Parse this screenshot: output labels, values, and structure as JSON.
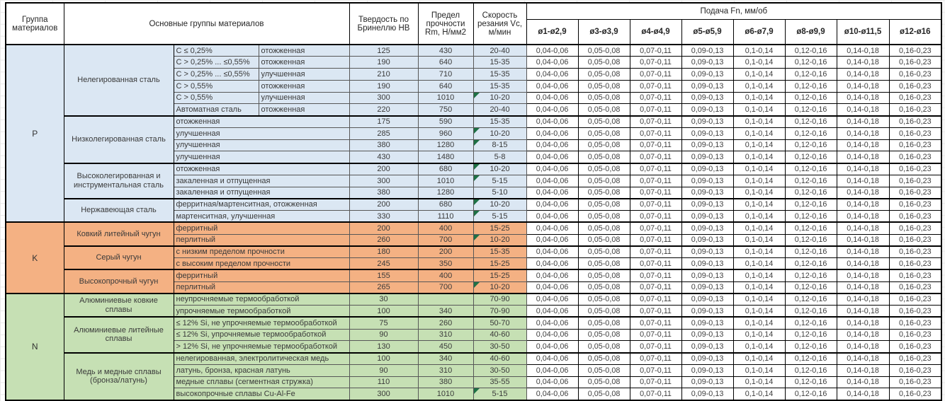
{
  "header": {
    "col_group": "Группа материалов",
    "col_materials": "Основные группы материалов",
    "col_hardness": "Твердость по Бринеллю HB",
    "col_strength": "Предел прочности Rm, Н/мм2",
    "col_speed": "Скорость резания Vc, м/мин",
    "col_feed": "Подача Fn, мм/об",
    "feed_columns": [
      "ø1-ø2,9",
      "ø3-ø3,9",
      "ø4-ø4,9",
      "ø5-ø5,9",
      "ø6-ø7,9",
      "ø8-ø9,9",
      "ø10-ø11,5",
      "ø12-ø16"
    ]
  },
  "feed_values": [
    "0,04-0,06",
    "0,05-0,08",
    "0,07-0,11",
    "0,09-0,13",
    "0,1-0,14",
    "0,12-0,16",
    "0,14-0,18",
    "0,16-0,23"
  ],
  "marker_color": "#1e7145",
  "groups": [
    {
      "letter": "P",
      "color": "#dbe7f3",
      "subgroups": [
        {
          "name": "Нелегированная сталь",
          "rows": [
            {
              "cells": [
                "C ≤ 0,25%",
                "отожженная"
              ],
              "hb": "125",
              "rm": "430",
              "vc": "20-40",
              "marker": false
            },
            {
              "cells": [
                "C > 0,25% ... ≤0,55%",
                "отожженная"
              ],
              "hb": "190",
              "rm": "640",
              "vc": "15-35",
              "marker": false
            },
            {
              "cells": [
                "C > 0,25% ... ≤0,55%",
                "улучшенная"
              ],
              "hb": "210",
              "rm": "710",
              "vc": "15-35",
              "marker": false
            },
            {
              "cells": [
                "C > 0,55%",
                "отожженная"
              ],
              "hb": "190",
              "rm": "640",
              "vc": "15-35",
              "marker": false
            },
            {
              "cells": [
                "C > 0,55%",
                "улучшенная"
              ],
              "hb": "300",
              "rm": "1010",
              "vc": "10-20",
              "marker": true
            },
            {
              "cells": [
                "Автоматная сталь",
                "отожженная"
              ],
              "hb": "220",
              "rm": "750",
              "vc": "20-40",
              "marker": false
            }
          ]
        },
        {
          "name": "Низколегированная сталь",
          "rows": [
            {
              "cells": [
                "отожженная"
              ],
              "hb": "175",
              "rm": "590",
              "vc": "15-35",
              "marker": false
            },
            {
              "cells": [
                "улучшенная"
              ],
              "hb": "285",
              "rm": "960",
              "vc": "10-20",
              "marker": true
            },
            {
              "cells": [
                "улучшенная"
              ],
              "hb": "380",
              "rm": "1280",
              "vc": "8-15",
              "marker": true
            },
            {
              "cells": [
                "улучшенная"
              ],
              "hb": "430",
              "rm": "1480",
              "vc": "5-8",
              "marker": false
            }
          ]
        },
        {
          "name": "Высоколегированная и инструментальная сталь",
          "rows": [
            {
              "cells": [
                "отожженная"
              ],
              "hb": "200",
              "rm": "680",
              "vc": "10-20",
              "marker": true
            },
            {
              "cells": [
                "закаленная и отпущенная"
              ],
              "hb": "300",
              "rm": "1010",
              "vc": "5-15",
              "marker": true
            },
            {
              "cells": [
                "закаленная и отпущенная"
              ],
              "hb": "380",
              "rm": "1280",
              "vc": "5-10",
              "marker": false
            }
          ]
        },
        {
          "name": "Нержавеющая сталь",
          "rows": [
            {
              "cells": [
                "ферритная/мартенситная, отожженная"
              ],
              "hb": "200",
              "rm": "680",
              "vc": "10-20",
              "marker": true
            },
            {
              "cells": [
                "мартенситная, улучшенная"
              ],
              "hb": "330",
              "rm": "1110",
              "vc": "5-15",
              "marker": true
            }
          ]
        }
      ]
    },
    {
      "letter": "K",
      "color": "#f4b183",
      "subgroups": [
        {
          "name": "Ковкий литейный чугун",
          "rows": [
            {
              "cells": [
                "ферритный"
              ],
              "hb": "200",
              "rm": "400",
              "vc": "15-25",
              "marker": false
            },
            {
              "cells": [
                "перлитный"
              ],
              "hb": "260",
              "rm": "700",
              "vc": "10-20",
              "marker": true
            }
          ]
        },
        {
          "name": "Серый чугун",
          "rows": [
            {
              "cells": [
                "с низким пределом прочности"
              ],
              "hb": "180",
              "rm": "200",
              "vc": "15-35",
              "marker": false
            },
            {
              "cells": [
                "с высоким пределом прочности"
              ],
              "hb": "245",
              "rm": "350",
              "vc": "15-25",
              "marker": false
            }
          ]
        },
        {
          "name": "Высокопрочный чугун",
          "rows": [
            {
              "cells": [
                "ферритный"
              ],
              "hb": "155",
              "rm": "400",
              "vc": "15-25",
              "marker": false
            },
            {
              "cells": [
                "перлитный"
              ],
              "hb": "265",
              "rm": "700",
              "vc": "10-20",
              "marker": true
            }
          ]
        }
      ]
    },
    {
      "letter": "N",
      "color": "#c6e0b4",
      "subgroups": [
        {
          "name": "Алюминиевые ковкие сплавы",
          "rows": [
            {
              "cells": [
                "неупрочняемые термообработкой"
              ],
              "hb": "30",
              "rm": "",
              "vc": "70-90",
              "marker": false
            },
            {
              "cells": [
                "упрочняемые термообработкой"
              ],
              "hb": "100",
              "rm": "340",
              "vc": "70-90",
              "marker": false
            }
          ]
        },
        {
          "name": "Алюминиевые литейные сплавы",
          "rows": [
            {
              "cells": [
                "≤ 12% Si, не упрочняемые термообработкой"
              ],
              "hb": "75",
              "rm": "260",
              "vc": "50-70",
              "marker": false
            },
            {
              "cells": [
                "≤ 12% Si, упрочняемые термообработкой"
              ],
              "hb": "90",
              "rm": "310",
              "vc": "40-60",
              "marker": false
            },
            {
              "cells": [
                "> 12% Si, не упрочняемые термообработкой"
              ],
              "hb": "130",
              "rm": "450",
              "vc": "30-50",
              "marker": false
            }
          ]
        },
        {
          "name": "Медь и медные сплавы (бронза/латунь)",
          "rows": [
            {
              "cells": [
                "нелегированная, электролитическая медь"
              ],
              "hb": "100",
              "rm": "340",
              "vc": "40-60",
              "marker": false
            },
            {
              "cells": [
                "латунь, бронза, красная латунь"
              ],
              "hb": "90",
              "rm": "310",
              "vc": "30-50",
              "marker": false
            },
            {
              "cells": [
                "медные сплавы (сегментная стружка)"
              ],
              "hb": "110",
              "rm": "380",
              "vc": "35-55",
              "marker": false
            },
            {
              "cells": [
                "высокопрочные сплавы Cu-Al-Fe"
              ],
              "hb": "300",
              "rm": "1010",
              "vc": "5-15",
              "marker": true
            }
          ]
        }
      ]
    }
  ]
}
